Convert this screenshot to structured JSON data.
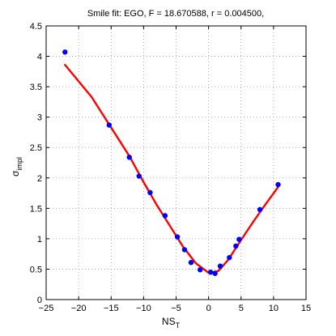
{
  "chart_data": {
    "type": "scatter",
    "title": "Smile fit: EGO, F = 18.670588, r = 0.004500,",
    "xlabel_main": "NS",
    "xlabel_sub": "T",
    "ylabel_main": "σ",
    "ylabel_sub": "impl",
    "xlim": [
      -25,
      15
    ],
    "ylim": [
      0,
      4.5
    ],
    "xticks": [
      -25,
      -20,
      -15,
      -10,
      -5,
      0,
      5,
      10,
      15
    ],
    "xtick_labels": [
      "−25",
      "−20",
      "−15",
      "−10",
      "−5",
      "0",
      "5",
      "10",
      "15"
    ],
    "yticks": [
      0,
      0.5,
      1,
      1.5,
      2,
      2.5,
      3,
      3.5,
      4,
      4.5
    ],
    "ytick_labels": [
      "0",
      "0.5",
      "1",
      "1.5",
      "2",
      "2.5",
      "3",
      "3.5",
      "4",
      "4.5"
    ],
    "grid": true,
    "series": [
      {
        "type": "scatter",
        "color": "#0000ff",
        "x": [
          -22.1,
          -15.3,
          -12.2,
          -10.7,
          -9.0,
          -6.7,
          -4.8,
          -3.7,
          -2.7,
          -1.3,
          0.3,
          1.0,
          1.8,
          3.2,
          4.2,
          4.7,
          7.9,
          10.7
        ],
        "y": [
          4.07,
          2.87,
          2.34,
          2.03,
          1.76,
          1.38,
          1.03,
          0.82,
          0.61,
          0.49,
          0.45,
          0.43,
          0.55,
          0.69,
          0.88,
          0.99,
          1.48,
          1.89
        ]
      },
      {
        "type": "line",
        "color": "#ff0000",
        "x": [
          -22.1,
          -18.0,
          -15.3,
          -12.2,
          -10.0,
          -8.0,
          -6.0,
          -4.0,
          -2.0,
          0.0,
          1.5,
          3.0,
          5.0,
          7.0,
          9.0,
          10.7
        ],
        "y": [
          3.86,
          3.33,
          2.88,
          2.36,
          1.93,
          1.56,
          1.22,
          0.88,
          0.6,
          0.44,
          0.47,
          0.65,
          0.98,
          1.3,
          1.6,
          1.85
        ]
      }
    ]
  }
}
